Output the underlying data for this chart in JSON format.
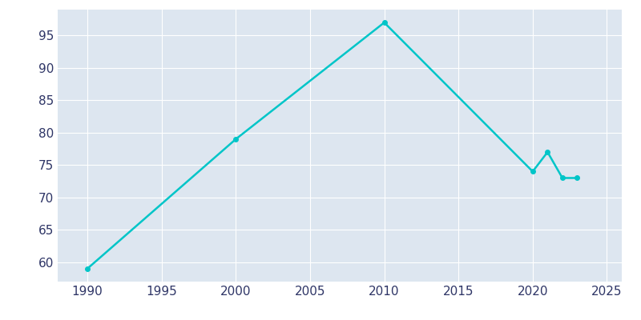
{
  "years": [
    1990,
    2000,
    2010,
    2020,
    2021,
    2022,
    2023
  ],
  "population": [
    59,
    79,
    97,
    74,
    77,
    73,
    73
  ],
  "line_color": "#00C5C8",
  "marker_color": "#00C5C8",
  "background_color": "#dde6f0",
  "figure_background": "#ffffff",
  "grid_color": "#ffffff",
  "xlim": [
    1988,
    2026
  ],
  "ylim": [
    57,
    99
  ],
  "yticks": [
    60,
    65,
    70,
    75,
    80,
    85,
    90,
    95
  ],
  "xticks": [
    1990,
    1995,
    2000,
    2005,
    2010,
    2015,
    2020,
    2025
  ],
  "tick_label_color": "#2e3566",
  "tick_label_fontsize": 11,
  "line_width": 1.8,
  "marker_size": 4
}
